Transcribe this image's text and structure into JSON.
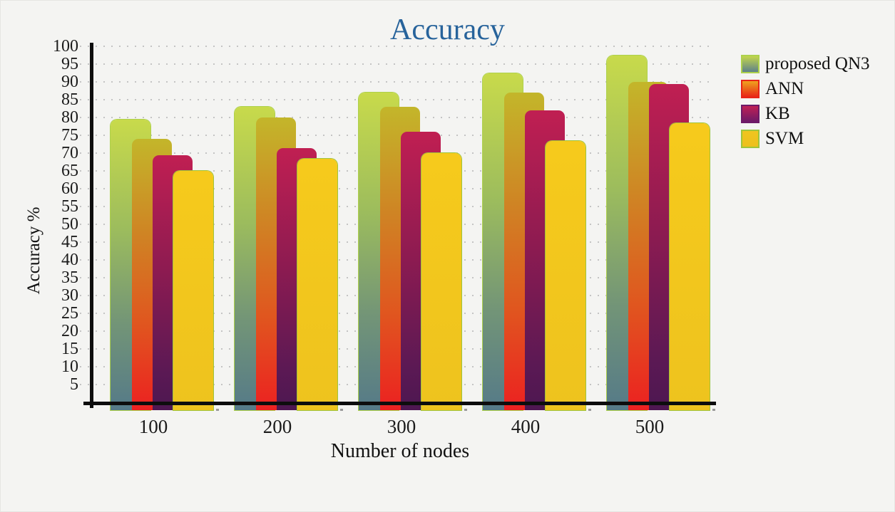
{
  "chart_data": {
    "type": "bar",
    "title": "Accuracy",
    "xlabel": "Number of nodes",
    "ylabel": "Accuracy %",
    "categories": [
      "100",
      "200",
      "300",
      "400",
      "500"
    ],
    "series": [
      {
        "name": "proposed QN3",
        "values": [
          79.5,
          83,
          87,
          92.5,
          97.5
        ],
        "gradient": [
          [
            "#c8da4b",
            0
          ],
          [
            "#9cbc5d",
            38
          ],
          [
            "#739577",
            70
          ],
          [
            "#557a88",
            100
          ]
        ],
        "legend_gradient": [
          "#c3d64c",
          "#5e808a"
        ],
        "border": "#aed14c"
      },
      {
        "name": "ANN",
        "values": [
          74,
          80,
          83,
          87,
          90
        ],
        "gradient": [
          [
            "#c3b62a",
            0
          ],
          [
            "#cf8424",
            35
          ],
          [
            "#e0561f",
            68
          ],
          [
            "#ec2121",
            100
          ]
        ],
        "legend_gradient": [
          "#efa31e",
          "#e82517"
        ],
        "border": null
      },
      {
        "name": "KB",
        "values": [
          69.5,
          71.5,
          76,
          82,
          89.5
        ],
        "gradient": [
          [
            "#c01f52",
            0
          ],
          [
            "#8d1b51",
            45
          ],
          [
            "#5b1954",
            85
          ],
          [
            "#4d1751",
            100
          ]
        ],
        "legend_gradient": [
          "#bf2055",
          "#6d1a67"
        ],
        "border": null
      },
      {
        "name": "SVM",
        "values": [
          65,
          68.5,
          70,
          73.5,
          78.5
        ],
        "gradient": [
          [
            "#f6ca1c",
            0
          ],
          [
            "#eec31e",
            100
          ]
        ],
        "legend_gradient": [
          "#f0c51f",
          "#edc01d"
        ],
        "border": "#9fc43c"
      }
    ],
    "ylim": [
      0,
      100
    ],
    "ytick_step": 5,
    "yticks": [
      5,
      10,
      15,
      20,
      25,
      30,
      35,
      40,
      45,
      50,
      55,
      60,
      65,
      70,
      75,
      80,
      85,
      90,
      95,
      100
    ],
    "grid": "dotted-horizontal",
    "legend_position": "top-right"
  },
  "colors": {
    "background": "#f4f4f2",
    "axis": "#0d0d0d",
    "tick_text": "#1b1b1b",
    "grid_dot": "#c4c4c4",
    "title": "#27639b"
  }
}
